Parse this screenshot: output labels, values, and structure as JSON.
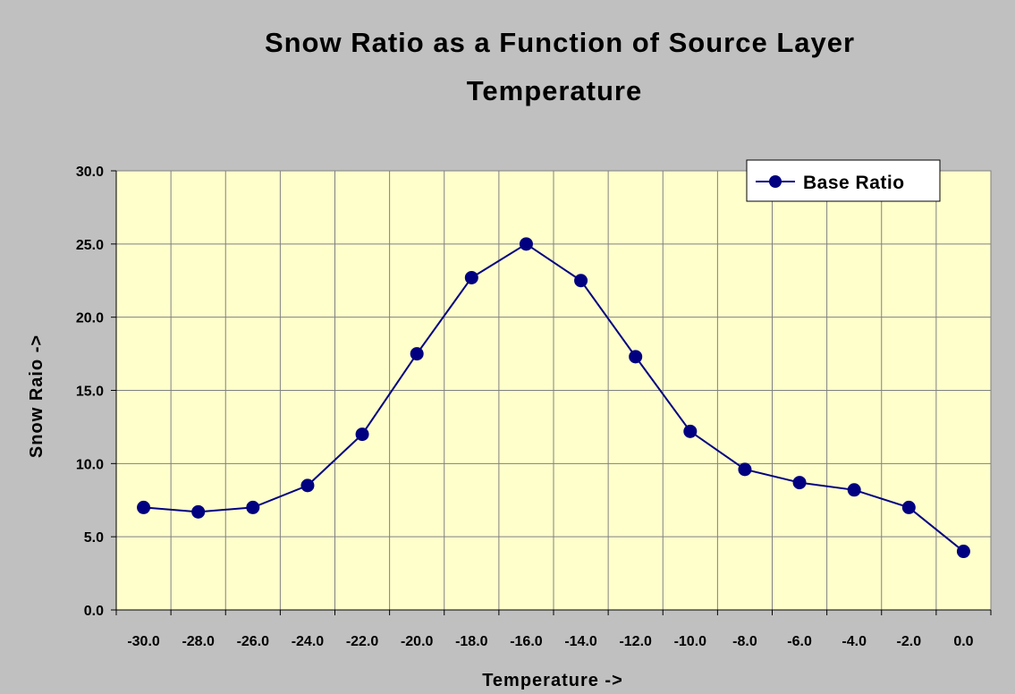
{
  "chart_data": {
    "type": "line",
    "title_lines": [
      "Snow Ratio as a Function of Source Layer",
      "Temperature"
    ],
    "xlabel": "Temperature ->",
    "ylabel": "Snow Raio ->",
    "x_tick_labels": [
      "-30.0",
      "-28.0",
      "-26.0",
      "-24.0",
      "-22.0",
      "-20.0",
      "-18.0",
      "-16.0",
      "-14.0",
      "-12.0",
      "-10.0",
      "-8.0",
      "-6.0",
      "-4.0",
      "-2.0",
      "0.0"
    ],
    "y_tick_labels": [
      "0.0",
      "5.0",
      "10.0",
      "15.0",
      "20.0",
      "25.0",
      "30.0"
    ],
    "ylim": [
      0,
      30
    ],
    "grid": true,
    "legend_position": "top-right",
    "series": [
      {
        "name": "Base Ratio",
        "color": "#000080",
        "x": [
          -30,
          -28,
          -26,
          -24,
          -22,
          -20,
          -18,
          -16,
          -14,
          -12,
          -10,
          -8,
          -6,
          -4,
          -2,
          0
        ],
        "values": [
          7.0,
          6.7,
          7.0,
          8.5,
          12.0,
          17.5,
          22.7,
          25.0,
          22.5,
          17.3,
          12.2,
          9.6,
          8.7,
          8.2,
          7.0,
          4.0
        ]
      }
    ],
    "plot_background": "#ffffcc",
    "page_background": "#c0c0c0"
  }
}
